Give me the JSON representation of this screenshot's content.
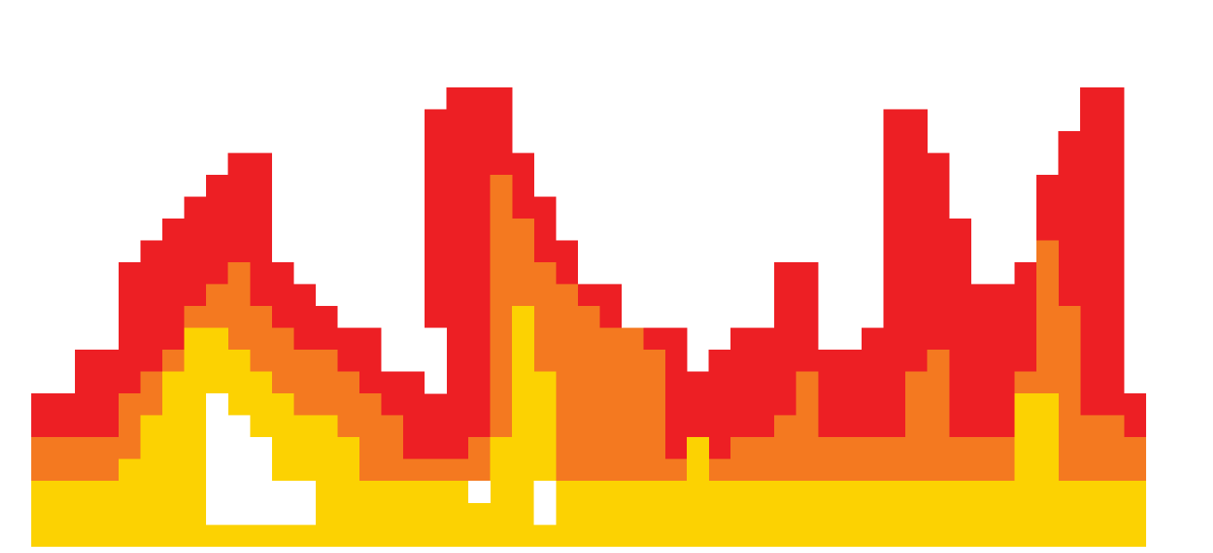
{
  "image": {
    "subject": "pixel-art-flames",
    "background_color": "#ffffff"
  },
  "palette": {
    "red": "#ed1f24",
    "orange": "#f47920",
    "yellow": "#fcd202"
  },
  "flame_layers": [
    {
      "name": "red-flame-layer",
      "color_key": "red"
    },
    {
      "name": "orange-flame-layer",
      "color_key": "orange"
    },
    {
      "name": "yellow-flame-layer",
      "color_key": "yellow"
    }
  ]
}
